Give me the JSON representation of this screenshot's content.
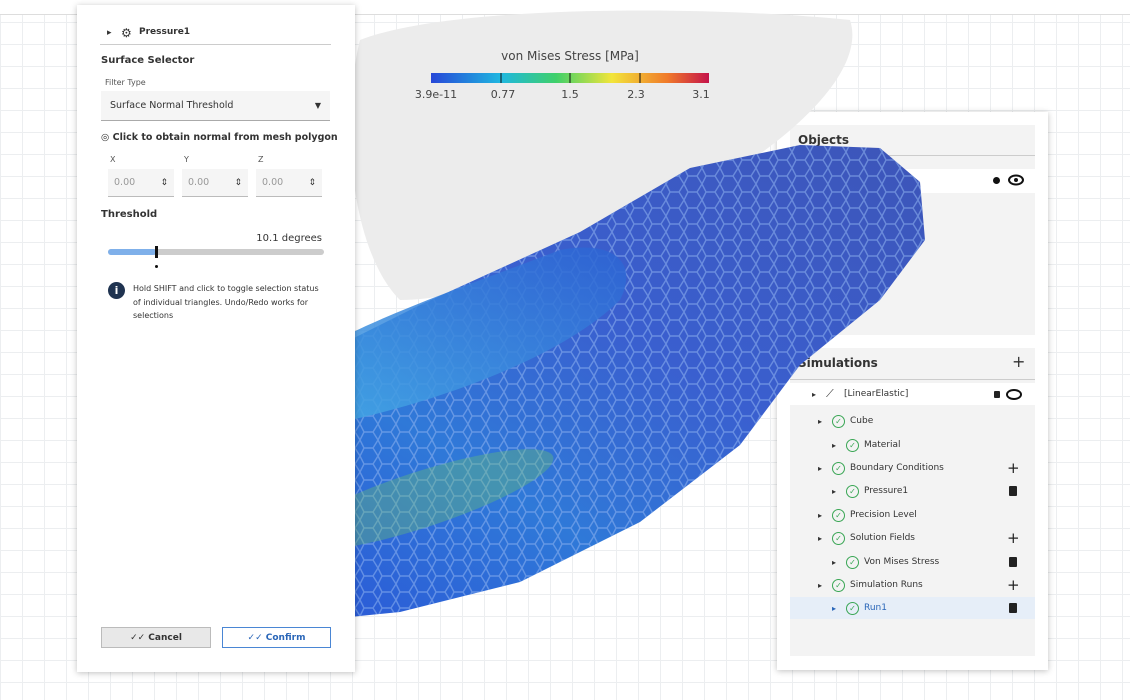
{
  "left_panel": {
    "header": "Pressure1",
    "section_title": "Surface Selector",
    "filter_label": "Filter Type",
    "filter_value": "Surface Normal Threshold",
    "normal_button": "Click to obtain normal from mesh polygon",
    "coords": [
      {
        "label": "X",
        "value": "0.00"
      },
      {
        "label": "Y",
        "value": "0.00"
      },
      {
        "label": "Z",
        "value": "0.00"
      }
    ],
    "threshold_label": "Threshold",
    "threshold_value": "10.1 degrees",
    "info": "Hold SHIFT and click to toggle selection status of individual triangles. Undo/Redo works for selections",
    "cancel": "Cancel",
    "confirm": "Confirm"
  },
  "colorbar": {
    "title": "von Mises Stress [MPa]",
    "ticks": [
      "3.9e-11",
      "0.77",
      "1.5",
      "2.3",
      "3.1"
    ]
  },
  "right_panel": {
    "objects_title": "Objects",
    "simulations_title": "Simulations",
    "tree": [
      "[LinearElastic]",
      "Cube",
      "Material",
      "Boundary Conditions",
      "Pressure1",
      "Precision Level",
      "Solution Fields",
      "Von Mises Stress",
      "Simulation Runs",
      "Run1"
    ]
  }
}
